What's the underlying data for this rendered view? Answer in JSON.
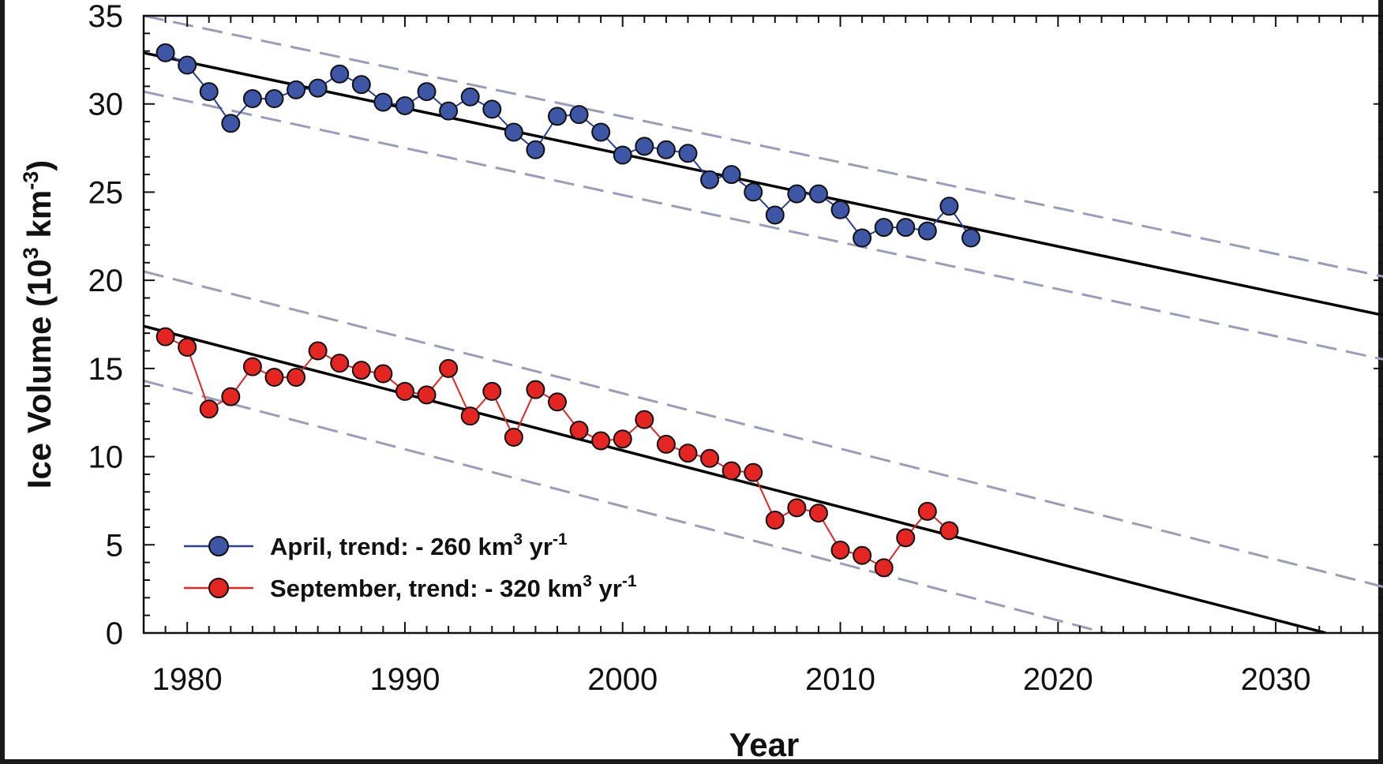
{
  "chart_data": {
    "type": "line",
    "title": "",
    "xlabel": "Year",
    "ylabel": "Ice Volume (10",
    "ylabel_sup": "3",
    "ylabel_mid": " km",
    "ylabel_sup2": "-3",
    "ylabel_end": ")",
    "xlim": [
      1978,
      2035
    ],
    "ylim": [
      0,
      35
    ],
    "xticks": [
      1980,
      1990,
      2000,
      2010,
      2020,
      2030
    ],
    "yticks": [
      0,
      5,
      10,
      15,
      20,
      25,
      30,
      35
    ],
    "series": [
      {
        "name": "April",
        "legend_prefix": "April, trend: - 260 km",
        "legend_sup": "3",
        "legend_mid": " yr",
        "legend_sup2": "-1",
        "color": "#3d56a6",
        "line_color": "#2b3f9a",
        "x": [
          1979,
          1980,
          1981,
          1982,
          1983,
          1984,
          1985,
          1986,
          1987,
          1988,
          1989,
          1990,
          1991,
          1992,
          1993,
          1994,
          1995,
          1996,
          1997,
          1998,
          1999,
          2000,
          2001,
          2002,
          2003,
          2004,
          2005,
          2006,
          2007,
          2008,
          2009,
          2010,
          2011,
          2012,
          2013,
          2014,
          2015,
          2016
        ],
        "values": [
          32.9,
          32.2,
          30.7,
          28.9,
          30.3,
          30.3,
          30.8,
          30.9,
          31.7,
          31.1,
          30.1,
          29.9,
          30.7,
          29.6,
          30.4,
          29.7,
          28.4,
          27.4,
          29.3,
          29.4,
          28.4,
          27.1,
          27.6,
          27.4,
          27.2,
          25.7,
          26.0,
          25.0,
          23.7,
          24.9,
          24.9,
          24.0,
          22.4,
          23.0,
          23.0,
          22.8,
          24.2,
          22.4
        ]
      },
      {
        "name": "September",
        "legend_prefix": "September, trend: - 320 km",
        "legend_sup": "3",
        "legend_mid": " yr",
        "legend_sup2": "-1",
        "color": "#e52521",
        "line_color": "#e52521",
        "x": [
          1979,
          1980,
          1981,
          1982,
          1983,
          1984,
          1985,
          1986,
          1987,
          1988,
          1989,
          1990,
          1991,
          1992,
          1993,
          1994,
          1995,
          1996,
          1997,
          1998,
          1999,
          2000,
          2001,
          2002,
          2003,
          2004,
          2005,
          2006,
          2007,
          2008,
          2009,
          2010,
          2011,
          2012,
          2013,
          2014,
          2015
        ],
        "values": [
          16.8,
          16.2,
          12.7,
          13.4,
          15.1,
          14.5,
          14.5,
          16.0,
          15.3,
          14.9,
          14.7,
          13.7,
          13.5,
          15.0,
          12.3,
          13.7,
          11.1,
          13.8,
          13.1,
          11.5,
          10.9,
          11.0,
          12.1,
          10.7,
          10.2,
          9.9,
          9.2,
          9.1,
          6.4,
          7.1,
          6.8,
          4.7,
          4.4,
          3.7,
          5.4,
          6.9,
          5.8
        ]
      }
    ],
    "trend_lines": [
      {
        "name": "April trend",
        "x": [
          1978,
          2035
        ],
        "y": [
          32.9,
          18.0
        ],
        "style": "solid",
        "color": "#000000"
      },
      {
        "name": "April upper bound",
        "x": [
          1978,
          2035
        ],
        "y": [
          35.0,
          20.2
        ],
        "style": "dashed",
        "color": "#9a9cbb"
      },
      {
        "name": "April lower bound",
        "x": [
          1978,
          2035
        ],
        "y": [
          30.7,
          15.5
        ],
        "style": "dashed",
        "color": "#9a9cbb"
      },
      {
        "name": "September trend",
        "x": [
          1978,
          2032.3
        ],
        "y": [
          17.4,
          0
        ],
        "style": "solid",
        "color": "#000000"
      },
      {
        "name": "September upper bound",
        "x": [
          1978,
          2035
        ],
        "y": [
          20.5,
          2.6
        ],
        "style": "dashed",
        "color": "#9a9cbb"
      },
      {
        "name": "September lower bound",
        "x": [
          1978,
          2022.2
        ],
        "y": [
          14.3,
          0
        ],
        "style": "dashed",
        "color": "#9a9cbb"
      }
    ],
    "legend_position": "bottom-left",
    "grid": false
  }
}
